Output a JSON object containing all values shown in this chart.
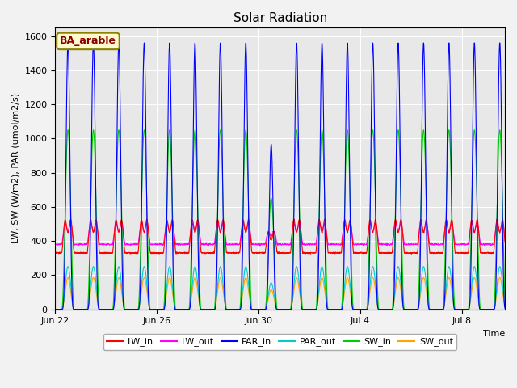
{
  "title": "Solar Radiation",
  "ylabel": "LW, SW (W/m2), PAR (umol/m2/s)",
  "xlabel": "Time",
  "annotation_text": "BA_arable",
  "annotation_color": "#8B0000",
  "annotation_bg": "#FFFACD",
  "annotation_edge": "#8B8000",
  "ylim": [
    0,
    1650
  ],
  "yticks": [
    0,
    200,
    400,
    600,
    800,
    1000,
    1200,
    1400,
    1600
  ],
  "num_days": 18,
  "samples_per_day": 144,
  "lines": {
    "LW_in": {
      "color": "#FF0000",
      "lw": 0.8
    },
    "LW_out": {
      "color": "#FF00FF",
      "lw": 0.8
    },
    "PAR_in": {
      "color": "#0000FF",
      "lw": 0.8
    },
    "PAR_out": {
      "color": "#00CCCC",
      "lw": 0.8
    },
    "SW_in": {
      "color": "#00CC00",
      "lw": 0.8
    },
    "SW_out": {
      "color": "#FFA500",
      "lw": 0.8
    }
  },
  "grid_color": "#FFFFFF",
  "plot_bg": "#E8E8E8",
  "fig_bg": "#F2F2F2",
  "xtick_labels": [
    "Jun 22",
    "Jun 26",
    "Jun 30",
    "Jul 4",
    "Jul 8"
  ],
  "xtick_positions_days": [
    0,
    4,
    8,
    12,
    16
  ]
}
